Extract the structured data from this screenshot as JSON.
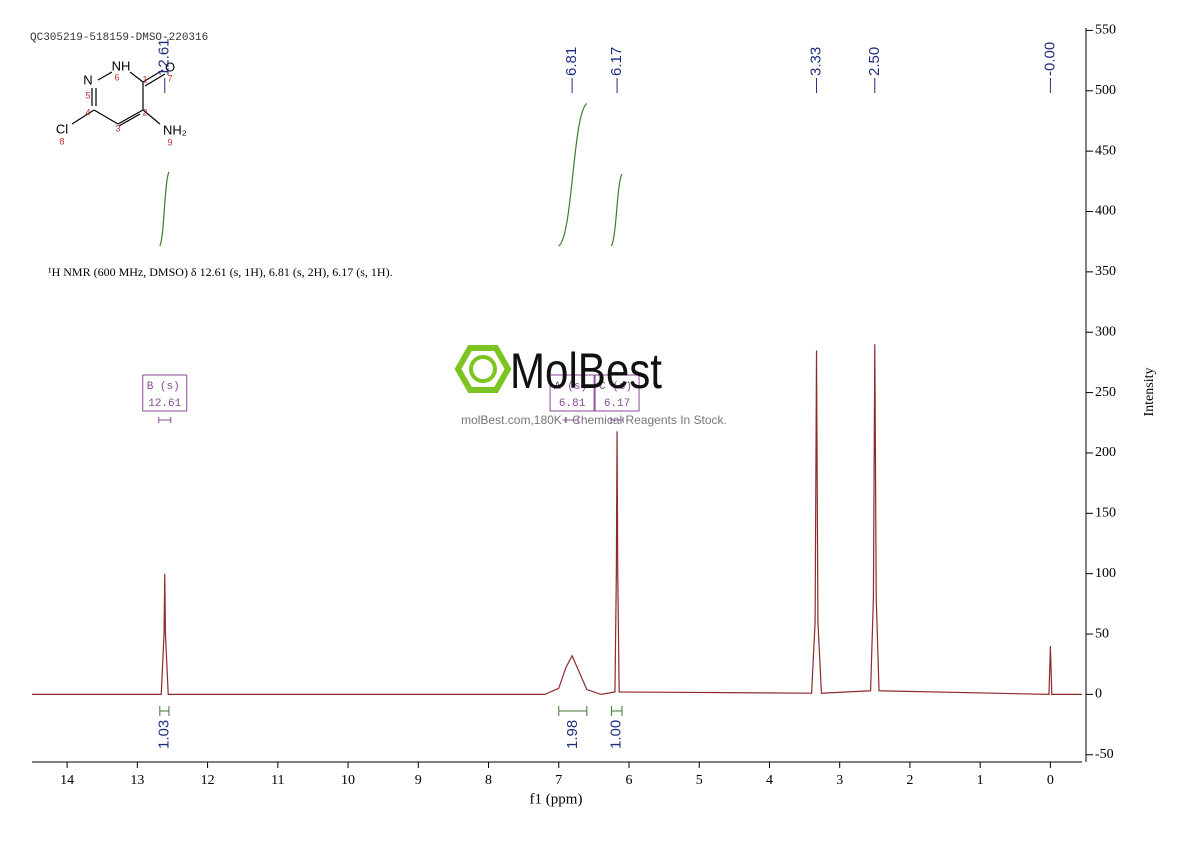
{
  "header": "QC305219-518159-DMSO-220316",
  "structure": {
    "atoms": [
      "N",
      "NH",
      "O",
      "Cl",
      "NH₂"
    ],
    "numbers": [
      "1",
      "2",
      "3",
      "4",
      "5",
      "6",
      "7",
      "8",
      "9"
    ]
  },
  "watermark": {
    "logo": "MolBest",
    "text": "molBest.com,180K+ Chemical Reagents In Stock."
  },
  "chart_data": {
    "type": "line",
    "description": "¹H NMR (600 MHz, DMSO) δ 12.61 (s, 1H), 6.81 (s, 2H), 6.17 (s, 1H).",
    "xlabel": "f1 (ppm)",
    "ylabel": "Intensity",
    "xlim": [
      14.5,
      -0.45
    ],
    "ylim": [
      -56,
      552
    ],
    "xticks": [
      14,
      13,
      12,
      11,
      10,
      9,
      8,
      7,
      6,
      5,
      4,
      3,
      2,
      1,
      0
    ],
    "yticks": [
      -50,
      0,
      50,
      100,
      150,
      200,
      250,
      300,
      350,
      400,
      450,
      500,
      550
    ],
    "series": [
      {
        "color": "#8b2b2b",
        "x": [
          14.5,
          12.66,
          12.62,
          12.61,
          12.6,
          12.56,
          7.2,
          7.0,
          6.9,
          6.81,
          6.72,
          6.6,
          6.4,
          6.2,
          6.18,
          6.17,
          6.16,
          6.14,
          3.4,
          3.35,
          3.33,
          3.31,
          3.26,
          2.56,
          2.52,
          2.5,
          2.48,
          2.44,
          0.02,
          0.0,
          -0.02,
          -0.45
        ],
        "values": [
          0,
          0,
          50,
          100,
          50,
          0,
          0,
          5,
          22,
          32,
          20,
          4,
          0,
          2,
          100,
          218,
          100,
          2,
          1,
          60,
          285,
          60,
          1,
          3,
          80,
          290,
          80,
          3,
          0,
          40,
          0,
          0
        ]
      }
    ],
    "peak_labels": [
      12.61,
      6.81,
      6.17,
      3.33,
      {
        "value": 2.5,
        "label": "2.50"
      },
      {
        "value": 0,
        "label": "-0.00"
      }
    ],
    "peak_label_color": "#1f2f7f",
    "integrals": [
      {
        "from": 12.68,
        "to": 12.55,
        "value": 1.03
      },
      {
        "from": 7.0,
        "to": 6.6,
        "value": 1.98
      },
      {
        "from": 6.25,
        "to": 6.1,
        "value": {
          "value": 1,
          "label": "1.00"
        }
      }
    ],
    "integral_color": "#3d7a2e",
    "multiplets": [
      {
        "name": "B (s)",
        "shift": 12.61
      },
      {
        "name": "A (s)",
        "shift": 6.81
      },
      {
        "name": "C (s)",
        "shift": 6.17
      }
    ],
    "multiplet_color": "#8a4a9a"
  }
}
